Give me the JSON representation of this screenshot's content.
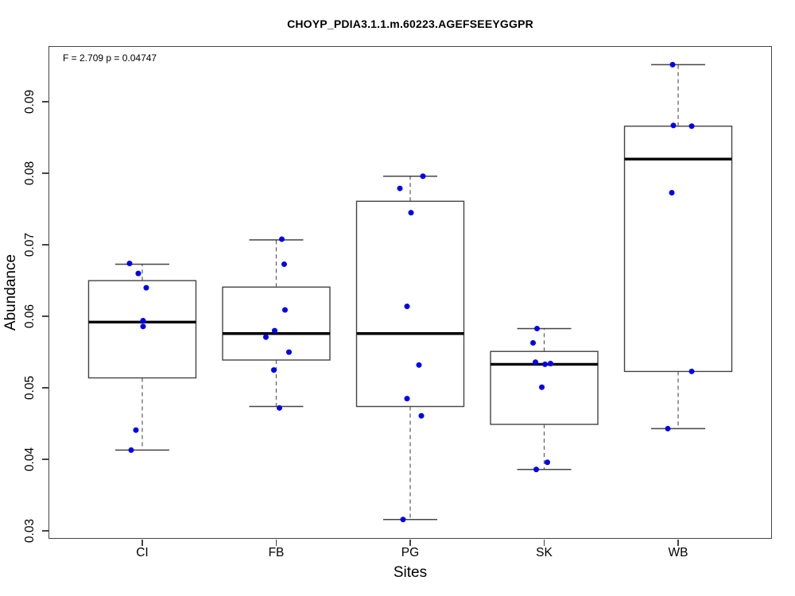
{
  "chart_data": {
    "type": "boxplot",
    "title": "CHOYP_PDIA3.1.1.m.60223.AGEFSEEYGGPR",
    "stat_annotation": "F = 2.709 p = 0.04747",
    "xlabel": "Sites",
    "ylabel": "Abundance",
    "categories": [
      "CI",
      "FB",
      "PG",
      "SK",
      "WB"
    ],
    "ylim": [
      0.0289,
      0.0978
    ],
    "yticks": [
      "0.03",
      "0.04",
      "0.05",
      "0.06",
      "0.07",
      "0.08",
      "0.09"
    ],
    "grid": false,
    "legend": "none",
    "point_color": "#0000EE",
    "box_fill": "#ffffff",
    "box_stroke": "#444444",
    "median_color": "#000000",
    "groups": [
      {
        "label": "CI",
        "whisker_low": 0.0413,
        "q1": 0.0514,
        "median": 0.0592,
        "q3": 0.065,
        "whisker_high": 0.0673,
        "points": [
          {
            "v": 0.0674,
            "dx": -16
          },
          {
            "v": 0.066,
            "dx": -5
          },
          {
            "v": 0.064,
            "dx": 5
          },
          {
            "v": 0.0594,
            "dx": 1
          },
          {
            "v": 0.0586,
            "dx": 1
          },
          {
            "v": 0.0441,
            "dx": -8
          },
          {
            "v": 0.0413,
            "dx": -14
          }
        ]
      },
      {
        "label": "FB",
        "whisker_low": 0.0474,
        "q1": 0.0539,
        "median": 0.0576,
        "q3": 0.0641,
        "whisker_high": 0.0707,
        "points": [
          {
            "v": 0.0708,
            "dx": 7
          },
          {
            "v": 0.0673,
            "dx": 10
          },
          {
            "v": 0.0609,
            "dx": 11
          },
          {
            "v": 0.058,
            "dx": -2
          },
          {
            "v": 0.0571,
            "dx": -13
          },
          {
            "v": 0.055,
            "dx": 16
          },
          {
            "v": 0.0525,
            "dx": -3
          },
          {
            "v": 0.0472,
            "dx": 4
          }
        ]
      },
      {
        "label": "PG",
        "whisker_low": 0.0316,
        "q1": 0.0474,
        "median": 0.0576,
        "q3": 0.0761,
        "whisker_high": 0.0796,
        "points": [
          {
            "v": 0.0796,
            "dx": 16
          },
          {
            "v": 0.0779,
            "dx": -13
          },
          {
            "v": 0.0745,
            "dx": 1
          },
          {
            "v": 0.0614,
            "dx": -4
          },
          {
            "v": 0.0532,
            "dx": 11
          },
          {
            "v": 0.0485,
            "dx": -4
          },
          {
            "v": 0.0461,
            "dx": 14
          },
          {
            "v": 0.0316,
            "dx": -9
          }
        ]
      },
      {
        "label": "SK",
        "whisker_low": 0.0386,
        "q1": 0.0449,
        "median": 0.0533,
        "q3": 0.0551,
        "whisker_high": 0.0583,
        "points": [
          {
            "v": 0.0583,
            "dx": -9
          },
          {
            "v": 0.0563,
            "dx": -14
          },
          {
            "v": 0.0536,
            "dx": -11
          },
          {
            "v": 0.0534,
            "dx": 8
          },
          {
            "v": 0.0533,
            "dx": 1
          },
          {
            "v": 0.0501,
            "dx": -3
          },
          {
            "v": 0.0396,
            "dx": 4
          },
          {
            "v": 0.0386,
            "dx": -10
          }
        ]
      },
      {
        "label": "WB",
        "whisker_low": 0.0443,
        "q1": 0.0523,
        "median": 0.082,
        "q3": 0.0866,
        "whisker_high": 0.0952,
        "points": [
          {
            "v": 0.0952,
            "dx": -7
          },
          {
            "v": 0.0867,
            "dx": -6
          },
          {
            "v": 0.0866,
            "dx": 17
          },
          {
            "v": 0.0773,
            "dx": -8
          },
          {
            "v": 0.0523,
            "dx": 17
          },
          {
            "v": 0.0443,
            "dx": -13
          }
        ]
      }
    ]
  }
}
